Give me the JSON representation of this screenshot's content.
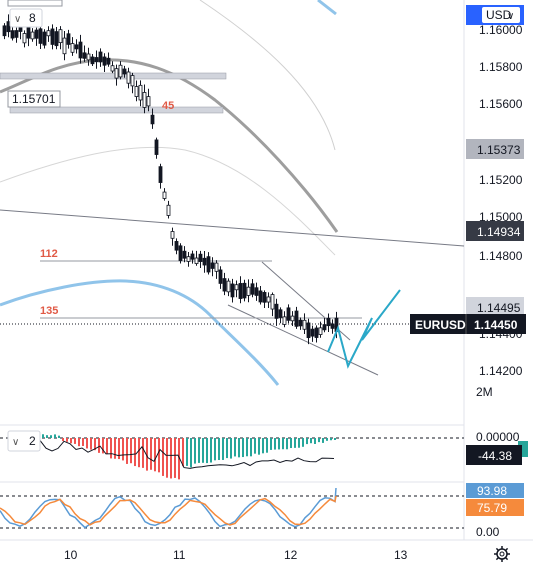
{
  "currency_button": "USD",
  "chart_data": {
    "type": "candlestick",
    "symbol": "EURUSD",
    "current_price": "1.14450",
    "y_ticks": [
      "1.16000",
      "1.15800",
      "1.15600",
      "1.15200",
      "1.15000",
      "1.14800",
      "1.14400",
      "1.14200"
    ],
    "x_ticks": [
      "10",
      "11",
      "12",
      "13"
    ],
    "price_tags": [
      {
        "value": "1.15373",
        "color": "#b2b5be",
        "text_color": "#131722"
      },
      {
        "value": "1.14934",
        "color": "#363a45",
        "text_color": "#ffffff"
      },
      {
        "value": "1.14495",
        "color": "#d1d4dc",
        "text_color": "#131722"
      }
    ],
    "level_labels": [
      "45",
      "112",
      "135"
    ],
    "box_label": "1.15701",
    "volume_scale_label": "2M",
    "overlay_badge": "8",
    "indicator1": {
      "badge": "2",
      "value": "-44.38",
      "zero_label": "0.00000",
      "colors": {
        "up": "#26a69a",
        "down": "#ef5350"
      }
    },
    "indicator2": {
      "value_blue": "93.98",
      "value_orange": "75.79"
    },
    "colors": {
      "blue_line": "#90c4ea",
      "grey_line": "#9e9e9e",
      "projection": "#2aa8c8"
    }
  }
}
